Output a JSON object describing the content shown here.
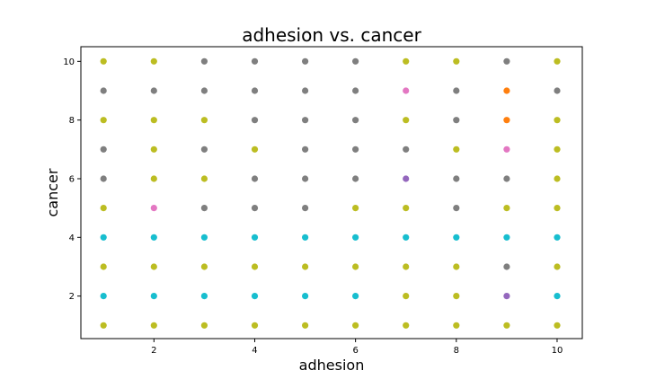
{
  "chart_data": {
    "type": "scatter",
    "title": "adhesion vs. cancer",
    "xlabel": "adhesion",
    "ylabel": "cancer",
    "xlim": [
      0.55,
      10.5
    ],
    "ylim": [
      0.55,
      10.5
    ],
    "xticks": [
      2,
      4,
      6,
      8,
      10
    ],
    "yticks": [
      2,
      4,
      6,
      8,
      10
    ],
    "grid": false,
    "colors": {
      "olive": "#bcbd22",
      "gray": "#7f7f7f",
      "cyan": "#17becf",
      "pink": "#e377c2",
      "purple": "#9467bd",
      "orange": "#ff7f0e"
    },
    "points": [
      {
        "x": 1,
        "y": 10,
        "c": "olive"
      },
      {
        "x": 2,
        "y": 10,
        "c": "olive"
      },
      {
        "x": 3,
        "y": 10,
        "c": "gray"
      },
      {
        "x": 4,
        "y": 10,
        "c": "gray"
      },
      {
        "x": 5,
        "y": 10,
        "c": "gray"
      },
      {
        "x": 6,
        "y": 10,
        "c": "gray"
      },
      {
        "x": 7,
        "y": 10,
        "c": "olive"
      },
      {
        "x": 8,
        "y": 10,
        "c": "olive"
      },
      {
        "x": 9,
        "y": 10,
        "c": "gray"
      },
      {
        "x": 10,
        "y": 10,
        "c": "olive"
      },
      {
        "x": 1,
        "y": 9,
        "c": "gray"
      },
      {
        "x": 2,
        "y": 9,
        "c": "gray"
      },
      {
        "x": 3,
        "y": 9,
        "c": "gray"
      },
      {
        "x": 4,
        "y": 9,
        "c": "gray"
      },
      {
        "x": 5,
        "y": 9,
        "c": "gray"
      },
      {
        "x": 6,
        "y": 9,
        "c": "gray"
      },
      {
        "x": 7,
        "y": 9,
        "c": "pink"
      },
      {
        "x": 8,
        "y": 9,
        "c": "gray"
      },
      {
        "x": 9,
        "y": 9,
        "c": "orange"
      },
      {
        "x": 10,
        "y": 9,
        "c": "gray"
      },
      {
        "x": 1,
        "y": 8,
        "c": "olive"
      },
      {
        "x": 2,
        "y": 8,
        "c": "olive"
      },
      {
        "x": 3,
        "y": 8,
        "c": "olive"
      },
      {
        "x": 4,
        "y": 8,
        "c": "gray"
      },
      {
        "x": 5,
        "y": 8,
        "c": "gray"
      },
      {
        "x": 6,
        "y": 8,
        "c": "gray"
      },
      {
        "x": 7,
        "y": 8,
        "c": "olive"
      },
      {
        "x": 8,
        "y": 8,
        "c": "gray"
      },
      {
        "x": 9,
        "y": 8,
        "c": "orange"
      },
      {
        "x": 10,
        "y": 8,
        "c": "olive"
      },
      {
        "x": 1,
        "y": 7,
        "c": "gray"
      },
      {
        "x": 2,
        "y": 7,
        "c": "olive"
      },
      {
        "x": 3,
        "y": 7,
        "c": "gray"
      },
      {
        "x": 4,
        "y": 7,
        "c": "olive"
      },
      {
        "x": 5,
        "y": 7,
        "c": "gray"
      },
      {
        "x": 6,
        "y": 7,
        "c": "gray"
      },
      {
        "x": 7,
        "y": 7,
        "c": "gray"
      },
      {
        "x": 8,
        "y": 7,
        "c": "olive"
      },
      {
        "x": 9,
        "y": 7,
        "c": "pink"
      },
      {
        "x": 10,
        "y": 7,
        "c": "olive"
      },
      {
        "x": 1,
        "y": 6,
        "c": "gray"
      },
      {
        "x": 2,
        "y": 6,
        "c": "olive"
      },
      {
        "x": 3,
        "y": 6,
        "c": "olive"
      },
      {
        "x": 4,
        "y": 6,
        "c": "gray"
      },
      {
        "x": 5,
        "y": 6,
        "c": "gray"
      },
      {
        "x": 6,
        "y": 6,
        "c": "gray"
      },
      {
        "x": 7,
        "y": 6,
        "c": "purple"
      },
      {
        "x": 8,
        "y": 6,
        "c": "gray"
      },
      {
        "x": 9,
        "y": 6,
        "c": "gray"
      },
      {
        "x": 10,
        "y": 6,
        "c": "olive"
      },
      {
        "x": 1,
        "y": 5,
        "c": "olive"
      },
      {
        "x": 2,
        "y": 5,
        "c": "pink"
      },
      {
        "x": 3,
        "y": 5,
        "c": "gray"
      },
      {
        "x": 4,
        "y": 5,
        "c": "gray"
      },
      {
        "x": 5,
        "y": 5,
        "c": "gray"
      },
      {
        "x": 6,
        "y": 5,
        "c": "olive"
      },
      {
        "x": 7,
        "y": 5,
        "c": "olive"
      },
      {
        "x": 8,
        "y": 5,
        "c": "gray"
      },
      {
        "x": 9,
        "y": 5,
        "c": "olive"
      },
      {
        "x": 10,
        "y": 5,
        "c": "olive"
      },
      {
        "x": 1,
        "y": 4,
        "c": "cyan"
      },
      {
        "x": 2,
        "y": 4,
        "c": "cyan"
      },
      {
        "x": 3,
        "y": 4,
        "c": "cyan"
      },
      {
        "x": 4,
        "y": 4,
        "c": "cyan"
      },
      {
        "x": 5,
        "y": 4,
        "c": "cyan"
      },
      {
        "x": 6,
        "y": 4,
        "c": "cyan"
      },
      {
        "x": 7,
        "y": 4,
        "c": "cyan"
      },
      {
        "x": 8,
        "y": 4,
        "c": "cyan"
      },
      {
        "x": 9,
        "y": 4,
        "c": "cyan"
      },
      {
        "x": 10,
        "y": 4,
        "c": "cyan"
      },
      {
        "x": 1,
        "y": 3,
        "c": "olive"
      },
      {
        "x": 2,
        "y": 3,
        "c": "olive"
      },
      {
        "x": 3,
        "y": 3,
        "c": "olive"
      },
      {
        "x": 4,
        "y": 3,
        "c": "olive"
      },
      {
        "x": 5,
        "y": 3,
        "c": "olive"
      },
      {
        "x": 6,
        "y": 3,
        "c": "olive"
      },
      {
        "x": 7,
        "y": 3,
        "c": "olive"
      },
      {
        "x": 8,
        "y": 3,
        "c": "olive"
      },
      {
        "x": 9,
        "y": 3,
        "c": "gray"
      },
      {
        "x": 10,
        "y": 3,
        "c": "olive"
      },
      {
        "x": 1,
        "y": 2,
        "c": "cyan"
      },
      {
        "x": 2,
        "y": 2,
        "c": "cyan"
      },
      {
        "x": 3,
        "y": 2,
        "c": "cyan"
      },
      {
        "x": 4,
        "y": 2,
        "c": "cyan"
      },
      {
        "x": 5,
        "y": 2,
        "c": "cyan"
      },
      {
        "x": 6,
        "y": 2,
        "c": "cyan"
      },
      {
        "x": 7,
        "y": 2,
        "c": "olive"
      },
      {
        "x": 8,
        "y": 2,
        "c": "olive"
      },
      {
        "x": 9,
        "y": 2,
        "c": "purple"
      },
      {
        "x": 10,
        "y": 2,
        "c": "cyan"
      },
      {
        "x": 1,
        "y": 1,
        "c": "olive"
      },
      {
        "x": 2,
        "y": 1,
        "c": "olive"
      },
      {
        "x": 3,
        "y": 1,
        "c": "olive"
      },
      {
        "x": 4,
        "y": 1,
        "c": "olive"
      },
      {
        "x": 5,
        "y": 1,
        "c": "olive"
      },
      {
        "x": 6,
        "y": 1,
        "c": "olive"
      },
      {
        "x": 7,
        "y": 1,
        "c": "olive"
      },
      {
        "x": 8,
        "y": 1,
        "c": "olive"
      },
      {
        "x": 9,
        "y": 1,
        "c": "olive"
      },
      {
        "x": 10,
        "y": 1,
        "c": "olive"
      }
    ]
  }
}
